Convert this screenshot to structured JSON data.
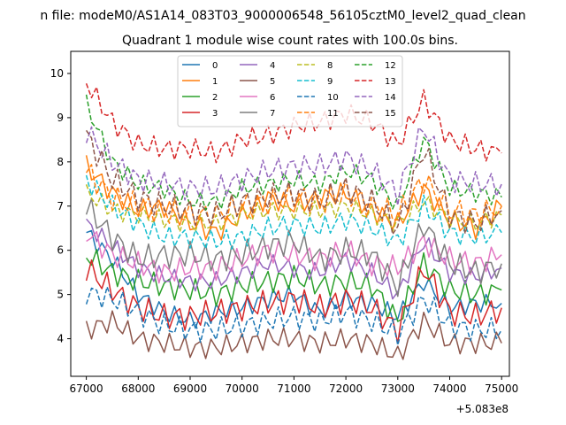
{
  "chart_data": {
    "type": "line",
    "suptitle": "n file: modeM0/AS1A14_083T03_9000006548_56105cztM0_level2_quad_clean",
    "title": "Quadrant 1 module wise count rates with 100.0s bins.",
    "xlabel": "",
    "ylabel": "",
    "x_offset_label": "+5.083e8",
    "xlim": [
      66700,
      75150
    ],
    "ylim": [
      3.15,
      10.5
    ],
    "xticks": [
      67000,
      68000,
      69000,
      70000,
      71000,
      72000,
      73000,
      74000,
      75000
    ],
    "xtick_labels": [
      "67000",
      "68000",
      "69000",
      "70000",
      "71000",
      "72000",
      "73000",
      "74000",
      "75000"
    ],
    "yticks": [
      4,
      5,
      6,
      7,
      8,
      9,
      10
    ],
    "ytick_labels": [
      "4",
      "5",
      "6",
      "7",
      "8",
      "9",
      "10"
    ],
    "grid": false,
    "legend_position": "upper-center",
    "x": [
      67000,
      67500,
      68000,
      68500,
      69000,
      69500,
      70000,
      70500,
      71000,
      71500,
      72000,
      72500,
      73000,
      73500,
      74000,
      74500,
      75000
    ],
    "series": [
      {
        "name": "0",
        "color": "#1f77b4",
        "dashed": false,
        "values": [
          6.4,
          5.8,
          5.0,
          4.6,
          4.4,
          4.6,
          4.7,
          4.9,
          5.0,
          4.6,
          4.9,
          4.8,
          4.5,
          5.3,
          4.7,
          4.8,
          4.8
        ]
      },
      {
        "name": "1",
        "color": "#ff7f0e",
        "dashed": false,
        "values": [
          7.9,
          7.3,
          6.9,
          7.0,
          6.6,
          6.4,
          6.8,
          7.2,
          7.0,
          7.2,
          7.3,
          6.9,
          6.6,
          7.4,
          6.7,
          6.5,
          7.0
        ]
      },
      {
        "name": "2",
        "color": "#2ca02c",
        "dashed": false,
        "values": [
          5.9,
          5.5,
          5.3,
          5.2,
          5.1,
          5.0,
          5.2,
          5.3,
          5.4,
          5.2,
          5.3,
          5.2,
          4.4,
          5.7,
          5.1,
          5.0,
          5.1
        ]
      },
      {
        "name": "3",
        "color": "#d62728",
        "dashed": false,
        "values": [
          5.6,
          5.1,
          4.7,
          4.5,
          4.5,
          4.6,
          4.7,
          4.8,
          4.9,
          4.7,
          4.9,
          4.7,
          4.2,
          5.6,
          4.6,
          4.5,
          4.7
        ]
      },
      {
        "name": "4",
        "color": "#9467bd",
        "dashed": false,
        "values": [
          6.6,
          6.1,
          5.6,
          5.4,
          5.3,
          5.3,
          5.5,
          5.7,
          5.6,
          5.5,
          5.8,
          5.5,
          5.0,
          6.2,
          5.5,
          5.4,
          5.6
        ]
      },
      {
        "name": "5",
        "color": "#8c564b",
        "dashed": false,
        "values": [
          4.2,
          4.4,
          4.0,
          3.9,
          3.8,
          3.8,
          3.9,
          4.0,
          4.0,
          3.9,
          4.0,
          3.9,
          3.6,
          4.4,
          3.9,
          3.9,
          3.9
        ]
      },
      {
        "name": "6",
        "color": "#e377c2",
        "dashed": false,
        "values": [
          6.4,
          5.9,
          5.7,
          5.5,
          5.6,
          5.6,
          5.8,
          6.0,
          5.9,
          5.8,
          6.0,
          5.7,
          5.6,
          6.2,
          5.8,
          5.7,
          5.9
        ]
      },
      {
        "name": "7",
        "color": "#7f7f7f",
        "dashed": false,
        "values": [
          7.0,
          6.3,
          5.8,
          5.9,
          5.9,
          5.8,
          5.9,
          6.1,
          6.2,
          5.8,
          6.0,
          5.9,
          5.2,
          6.6,
          5.7,
          5.5,
          5.7
        ]
      },
      {
        "name": "8",
        "color": "#bcbd22",
        "dashed": true,
        "values": [
          7.3,
          6.9,
          6.8,
          6.7,
          6.6,
          6.6,
          6.8,
          6.9,
          6.9,
          6.9,
          7.0,
          6.8,
          6.6,
          7.1,
          6.7,
          6.6,
          6.8
        ]
      },
      {
        "name": "9",
        "color": "#17becf",
        "dashed": true,
        "values": [
          7.6,
          7.0,
          6.6,
          6.3,
          6.3,
          6.2,
          6.3,
          6.5,
          6.6,
          6.5,
          6.7,
          6.5,
          6.2,
          7.0,
          6.4,
          6.3,
          6.4
        ]
      },
      {
        "name": "10",
        "color": "#1f77b4",
        "dashed": true,
        "values": [
          5.05,
          4.9,
          4.6,
          4.3,
          4.2,
          4.2,
          4.3,
          4.4,
          4.5,
          4.4,
          4.6,
          4.4,
          4.1,
          4.9,
          4.3,
          4.2,
          4.2
        ]
      },
      {
        "name": "11",
        "color": "#ff7f0e",
        "dashed": true,
        "values": [
          7.8,
          7.2,
          7.0,
          6.9,
          6.8,
          6.8,
          7.0,
          7.1,
          7.2,
          7.1,
          7.3,
          7.0,
          6.8,
          7.6,
          6.9,
          6.8,
          7.0
        ]
      },
      {
        "name": "12",
        "color": "#2ca02c",
        "dashed": true,
        "values": [
          9.3,
          8.0,
          7.5,
          7.4,
          7.1,
          7.1,
          7.4,
          7.5,
          7.6,
          7.5,
          7.8,
          7.6,
          7.0,
          8.5,
          7.4,
          7.3,
          7.2
        ]
      },
      {
        "name": "13",
        "color": "#d62728",
        "dashed": true,
        "values": [
          9.8,
          8.9,
          8.4,
          8.3,
          8.3,
          8.2,
          8.5,
          8.6,
          8.8,
          8.9,
          9.1,
          8.9,
          8.4,
          9.4,
          8.5,
          8.3,
          8.2
        ]
      },
      {
        "name": "14",
        "color": "#9467bd",
        "dashed": true,
        "values": [
          8.7,
          8.0,
          7.6,
          7.5,
          7.4,
          7.4,
          7.6,
          7.8,
          7.9,
          7.9,
          8.1,
          7.8,
          7.3,
          8.8,
          7.6,
          7.5,
          7.5
        ]
      },
      {
        "name": "15",
        "color": "#8c564b",
        "dashed": true,
        "values": [
          8.6,
          7.6,
          7.2,
          7.0,
          6.9,
          6.8,
          7.1,
          7.2,
          7.3,
          7.1,
          7.4,
          7.1,
          6.5,
          8.3,
          6.8,
          6.6,
          6.9
        ]
      }
    ]
  }
}
